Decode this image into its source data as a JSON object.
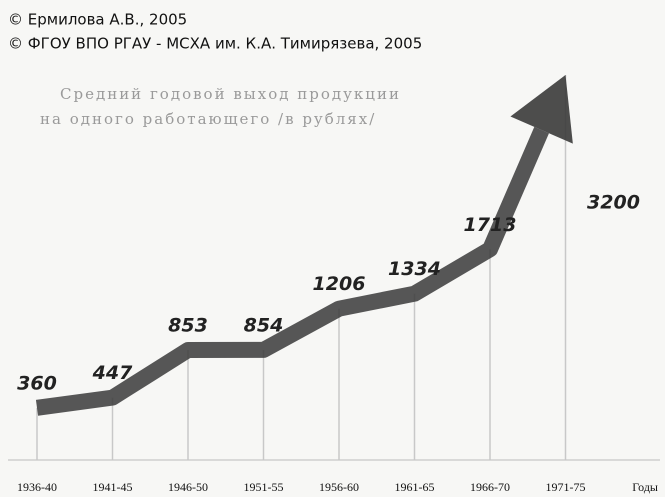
{
  "chart_data": {
    "type": "arrow-line",
    "notes": [
      "© Ермилова А.В., 2005",
      "© ФГОУ ВПО РГАУ - МСХА им. К.А. Тимирязева, 2005"
    ],
    "title": "Средний годовой выход продукции",
    "subtitle": "на одного работающего /в рублях/",
    "x_label": "Годы",
    "categories": [
      "1936-40",
      "1941-45",
      "1946-50",
      "1951-55",
      "1956-60",
      "1961-65",
      "1966-70",
      "1971-75"
    ],
    "values": [
      360,
      447,
      853,
      854,
      1206,
      1334,
      1713,
      3200
    ],
    "color": "#3a3a3a"
  }
}
